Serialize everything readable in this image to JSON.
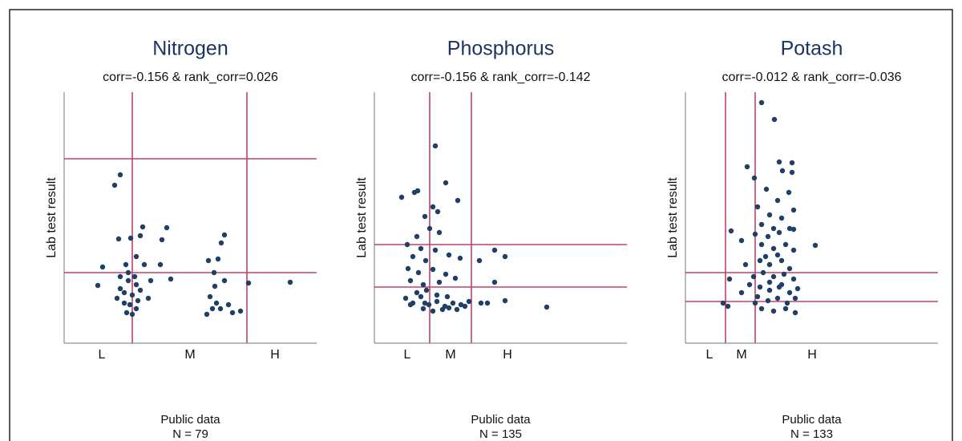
{
  "chart_data": [
    {
      "type": "scatter",
      "title": "Nitrogen",
      "subtitle": "corr=-0.156 & rank_corr=0.026",
      "y_label": "Lab test result",
      "x_label": "Public data",
      "note": "N = 79",
      "xlim": [
        0,
        315
      ],
      "ylim": [
        0,
        313
      ],
      "xticks": [
        {
          "value": 47,
          "label": "L"
        },
        {
          "value": 157,
          "label": "M"
        },
        {
          "value": 263,
          "label": "H"
        }
      ],
      "vlines": [
        85,
        228
      ],
      "hlines": [
        230,
        88
      ],
      "line_color": "#c2406b",
      "color": "#1f3f66",
      "x": [
        70,
        63,
        98,
        128,
        68,
        83,
        95,
        122,
        48,
        77,
        90,
        100,
        120,
        42,
        70,
        80,
        90,
        108,
        133,
        75,
        85,
        95,
        66,
        75,
        82,
        90,
        78,
        85,
        105,
        70,
        80,
        88,
        92,
        200,
        196,
        192,
        180,
        187,
        188,
        182,
        190,
        178,
        195,
        205,
        210,
        220,
        230,
        282,
        200,
        185
      ],
      "y": [
        210,
        197,
        145,
        144,
        130,
        131,
        134,
        129,
        95,
        98,
        108,
        98,
        98,
        72,
        83,
        78,
        73,
        78,
        80,
        63,
        60,
        66,
        56,
        50,
        48,
        43,
        38,
        36,
        56,
        68,
        88,
        83,
        53,
        135,
        125,
        105,
        103,
        88,
        71,
        58,
        50,
        36,
        43,
        48,
        38,
        40,
        75,
        76,
        78,
        43
      ]
    },
    {
      "type": "scatter",
      "title": "Phosphorus",
      "subtitle": "corr=-0.156 & rank_corr=-0.142",
      "y_label": "Lab test result",
      "x_label": "Public data",
      "note": "N = 135",
      "xlim": [
        0,
        315
      ],
      "ylim": [
        0,
        313
      ],
      "xticks": [
        {
          "value": 41,
          "label": "L"
        },
        {
          "value": 95,
          "label": "M"
        },
        {
          "value": 166,
          "label": "H"
        }
      ],
      "vlines": [
        69,
        121
      ],
      "hlines": [
        123,
        70
      ],
      "line_color": "#c2406b",
      "color": "#1f3f66",
      "x": [
        76,
        89,
        54,
        50,
        34,
        104,
        73,
        79,
        63,
        69,
        53,
        81,
        41,
        58,
        76,
        48,
        64,
        93,
        107,
        131,
        150,
        163,
        42,
        55,
        73,
        89,
        45,
        61,
        81,
        101,
        150,
        39,
        48,
        58,
        68,
        78,
        88,
        98,
        108,
        118,
        61,
        73,
        85,
        93,
        103,
        113,
        133,
        141,
        163,
        215,
        53,
        65,
        78,
        91,
        45,
        63
      ],
      "y": [
        246,
        200,
        190,
        188,
        182,
        178,
        170,
        164,
        158,
        143,
        133,
        138,
        123,
        118,
        116,
        108,
        103,
        110,
        106,
        103,
        116,
        108,
        93,
        88,
        92,
        86,
        78,
        73,
        76,
        81,
        76,
        56,
        50,
        58,
        48,
        52,
        46,
        50,
        48,
        52,
        43,
        40,
        42,
        44,
        42,
        46,
        50,
        50,
        53,
        45,
        63,
        66,
        60,
        58,
        48,
        50
      ]
    },
    {
      "type": "scatter",
      "title": "Potash",
      "subtitle": "corr=-0.012 & rank_corr=-0.036",
      "y_label": "Lab test result",
      "x_label": "Public data",
      "note": "N = 133",
      "xlim": [
        0,
        315
      ],
      "ylim": [
        0,
        313
      ],
      "xticks": [
        {
          "value": 30,
          "label": "L"
        },
        {
          "value": 70,
          "label": "M"
        },
        {
          "value": 158,
          "label": "H"
        }
      ],
      "vlines": [
        50,
        87
      ],
      "hlines": [
        88,
        52
      ],
      "line_color": "#c2406b",
      "color": "#1f3f66",
      "x": [
        95,
        111,
        77,
        117,
        133,
        121,
        133,
        86,
        101,
        129,
        90,
        115,
        105,
        120,
        135,
        95,
        110,
        130,
        57,
        87,
        103,
        117,
        135,
        162,
        70,
        95,
        110,
        125,
        135,
        75,
        93,
        105,
        120,
        130,
        85,
        97,
        110,
        123,
        135,
        55,
        80,
        93,
        105,
        117,
        130,
        140,
        70,
        90,
        103,
        115,
        127,
        137,
        47,
        53,
        87,
        95,
        110,
        125,
        137,
        105,
        120,
        100,
        115
      ],
      "y": [
        300,
        279,
        220,
        226,
        225,
        215,
        213,
        206,
        192,
        188,
        170,
        178,
        160,
        156,
        166,
        148,
        143,
        143,
        140,
        136,
        133,
        138,
        142,
        122,
        128,
        123,
        118,
        123,
        116,
        98,
        103,
        98,
        103,
        93,
        83,
        88,
        83,
        86,
        80,
        80,
        73,
        70,
        66,
        70,
        63,
        68,
        63,
        58,
        53,
        56,
        50,
        56,
        50,
        46,
        50,
        43,
        40,
        43,
        38,
        76,
        73,
        108,
        110
      ]
    }
  ]
}
